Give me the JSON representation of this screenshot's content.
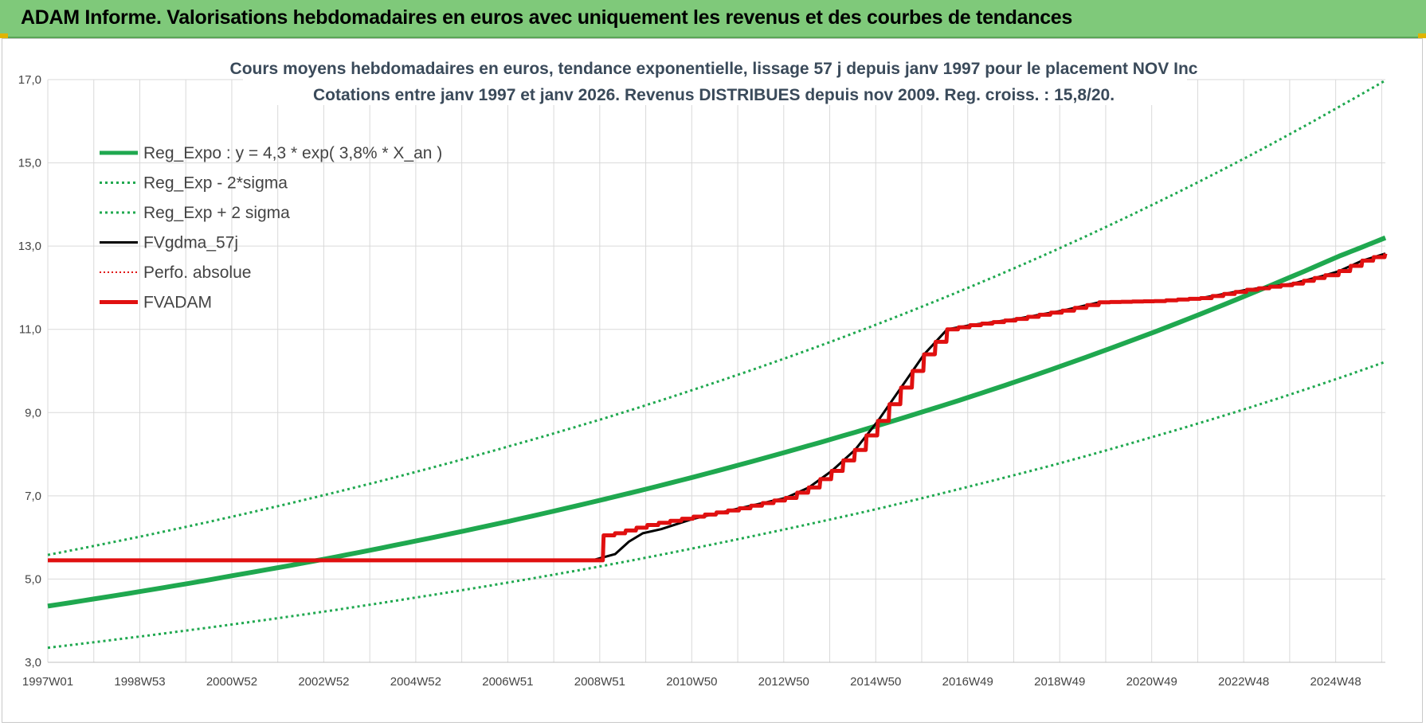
{
  "banner": {
    "title": "ADAM Informe. Valorisations hebdomadaires en euros avec uniquement les revenus et des courbes de tendances"
  },
  "colors": {
    "banner": "#7fc97a",
    "reg_expo": "#1fa84f",
    "fvadam": "#e01010",
    "fvgdma": "#000000",
    "perfo": "#e01010",
    "grid": "#d9d9d9"
  },
  "chart_data": {
    "type": "line",
    "title_lines": [
      "Cours moyens hebdomadaires en euros, tendance exponentielle, lissage 57 j depuis janv 1997  pour le placement NOV Inc",
      "Cotations entre janv 1997 et janv 2026. Revenus DISTRIBUES depuis nov 2009.  Reg. croiss. : 15,8/20."
    ],
    "y_ticks": [
      "3,0",
      "5,0",
      "7,0",
      "9,0",
      "11,0",
      "13,0",
      "15,0",
      "17,0"
    ],
    "ylim": [
      3,
      17
    ],
    "x_ticks": [
      "1997W01",
      "1998W53",
      "2000W52",
      "2002W52",
      "2004W52",
      "2006W51",
      "2008W51",
      "2010W50",
      "2012W50",
      "2014W50",
      "2016W49",
      "2018W49",
      "2020W49",
      "2022W48",
      "2024W48"
    ],
    "xlim": [
      1997.0,
      2026.0
    ],
    "legend": [
      {
        "key": "reg_expo",
        "label": "Reg_Expo : y = 4,3 * exp( 3,8% *  X_an )"
      },
      {
        "key": "reg_minus",
        "label": "Reg_Exp - 2*sigma"
      },
      {
        "key": "reg_plus",
        "label": "Reg_Exp + 2 sigma"
      },
      {
        "key": "fvgdma",
        "label": "FVgdma_57j"
      },
      {
        "key": "perfo",
        "label": "Perfo. absolue"
      },
      {
        "key": "fvadam",
        "label": "FVADAM"
      }
    ],
    "series": [
      {
        "name": "Reg_Expo : y = 4,3 * exp( 3,8% *  X_an )",
        "key": "reg_expo",
        "x": [
          1997,
          1999,
          2001,
          2003,
          2005,
          2007,
          2009,
          2011,
          2013,
          2015,
          2017,
          2019,
          2021,
          2023,
          2025,
          2026
        ],
        "y": [
          4.35,
          4.7,
          5.08,
          5.48,
          5.92,
          6.39,
          6.9,
          7.45,
          8.05,
          8.69,
          9.38,
          10.13,
          10.94,
          11.82,
          12.76,
          13.2
        ]
      },
      {
        "name": "Reg_Exp - 2*sigma",
        "key": "reg_minus",
        "x": [
          1997,
          1999,
          2001,
          2003,
          2005,
          2007,
          2009,
          2011,
          2013,
          2015,
          2017,
          2019,
          2021,
          2023,
          2025,
          2026
        ],
        "y": [
          3.35,
          3.62,
          3.91,
          4.22,
          4.56,
          4.92,
          5.31,
          5.74,
          6.2,
          6.69,
          7.23,
          7.8,
          8.43,
          9.1,
          9.83,
          10.22
        ]
      },
      {
        "name": "Reg_Exp + 2 sigma",
        "key": "reg_plus",
        "x": [
          1997,
          1999,
          2001,
          2003,
          2005,
          2007,
          2009,
          2011,
          2013,
          2015,
          2017,
          2019,
          2021,
          2023,
          2025,
          2026
        ],
        "y": [
          5.58,
          6.02,
          6.5,
          7.02,
          7.58,
          8.19,
          8.84,
          9.55,
          10.31,
          11.13,
          12.02,
          12.98,
          14.02,
          15.14,
          16.35,
          16.98
        ]
      },
      {
        "name": "FVgdma_57j",
        "key": "fvgdma",
        "x": [
          1997,
          2008.8,
          2009.3,
          2009.6,
          2009.9,
          2010.3,
          2011.0,
          2012.0,
          2013.0,
          2013.5,
          2014.0,
          2014.5,
          2015.0,
          2015.5,
          2016.0,
          2016.5,
          2017.0,
          2018.0,
          2019.0,
          2019.8,
          2021.0,
          2022.0,
          2023.0,
          2024.0,
          2024.7,
          2025.0,
          2025.5,
          2026.0
        ],
        "y": [
          5.45,
          5.45,
          5.6,
          5.9,
          6.1,
          6.2,
          6.45,
          6.7,
          6.95,
          7.2,
          7.6,
          8.1,
          8.8,
          9.6,
          10.4,
          11.0,
          11.1,
          11.25,
          11.45,
          11.65,
          11.68,
          11.75,
          11.95,
          12.1,
          12.3,
          12.4,
          12.65,
          12.82
        ]
      },
      {
        "name": "Perfo. absolue",
        "key": "perfo",
        "x": [
          1997,
          2009.0,
          2009.05,
          2009.3,
          2010.0,
          2011.0,
          2012.0,
          2013.0,
          2013.5,
          2014.0,
          2014.5,
          2015.0,
          2015.5,
          2016.0,
          2016.5,
          2017.0,
          2018.0,
          2019.0,
          2019.8,
          2021.0,
          2022.0,
          2023.0,
          2024.0,
          2024.7,
          2025.0,
          2025.5,
          2026.0
        ],
        "y": [
          5.45,
          5.45,
          6.05,
          6.1,
          6.3,
          6.5,
          6.7,
          6.95,
          7.2,
          7.6,
          8.1,
          8.8,
          9.6,
          10.4,
          11.0,
          11.1,
          11.25,
          11.45,
          11.65,
          11.68,
          11.75,
          11.95,
          12.1,
          12.3,
          12.4,
          12.65,
          12.82
        ]
      },
      {
        "name": "FVADAM",
        "key": "fvadam",
        "x": [
          1997,
          2009.0,
          2009.05,
          2009.3,
          2010.0,
          2011.0,
          2012.0,
          2013.0,
          2013.5,
          2014.0,
          2014.5,
          2015.0,
          2015.5,
          2016.0,
          2016.5,
          2017.0,
          2018.0,
          2019.0,
          2019.8,
          2021.0,
          2022.0,
          2023.0,
          2024.0,
          2024.7,
          2025.0,
          2025.5,
          2026.0
        ],
        "y": [
          5.45,
          5.45,
          6.05,
          6.1,
          6.3,
          6.5,
          6.7,
          6.95,
          7.2,
          7.6,
          8.1,
          8.8,
          9.6,
          10.4,
          11.0,
          11.1,
          11.25,
          11.45,
          11.65,
          11.68,
          11.75,
          11.95,
          12.1,
          12.3,
          12.4,
          12.65,
          12.82
        ]
      }
    ]
  }
}
